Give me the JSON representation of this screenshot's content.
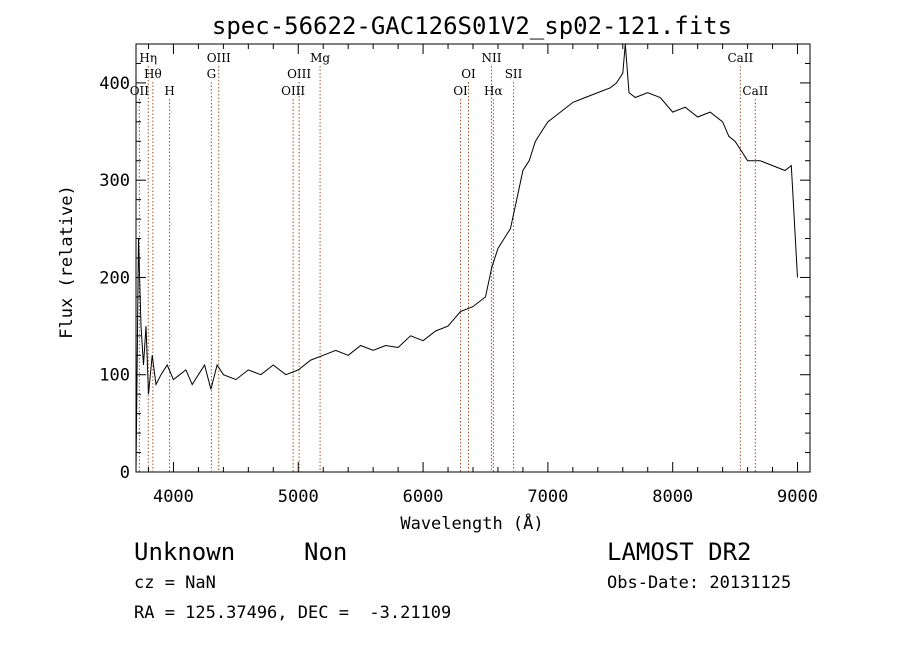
{
  "chart_data": {
    "type": "line",
    "title": "spec-56622-GAC126S01V2_sp02-121.fits",
    "xlabel": "Wavelength (Å)",
    "ylabel": "Flux (relative)",
    "xlim": [
      3700,
      9100
    ],
    "ylim": [
      0,
      440
    ],
    "xticks": [
      4000,
      5000,
      6000,
      7000,
      8000,
      9000
    ],
    "yticks": [
      0,
      100,
      200,
      300,
      400
    ],
    "grid": false,
    "line_color": "#000000",
    "marker_color": "#a0522d",
    "series": [
      {
        "x": [
          3700,
          3720,
          3740,
          3760,
          3780,
          3800,
          3830,
          3860,
          3900,
          3950,
          4000,
          4050,
          4100,
          4150,
          4200,
          4250,
          4300,
          4350,
          4400,
          4500,
          4600,
          4700,
          4800,
          4900,
          5000,
          5100,
          5200,
          5300,
          5400,
          5500,
          5600,
          5700,
          5800,
          5900,
          6000,
          6100,
          6200,
          6300,
          6400,
          6500,
          6550,
          6600,
          6650,
          6700,
          6750,
          6800,
          6850,
          6900,
          6950,
          7000,
          7100,
          7200,
          7300,
          7400,
          7500,
          7550,
          7600,
          7620,
          7650,
          7700,
          7800,
          7900,
          8000,
          8100,
          8200,
          8300,
          8400,
          8450,
          8500,
          8550,
          8600,
          8700,
          8800,
          8900,
          8950,
          9000
        ],
        "y": [
          0,
          240,
          150,
          110,
          150,
          80,
          120,
          90,
          100,
          110,
          95,
          100,
          105,
          90,
          100,
          110,
          85,
          110,
          100,
          95,
          105,
          100,
          110,
          100,
          105,
          115,
          120,
          125,
          120,
          130,
          125,
          130,
          128,
          140,
          135,
          145,
          150,
          165,
          170,
          180,
          210,
          230,
          240,
          250,
          280,
          310,
          320,
          340,
          350,
          360,
          370,
          380,
          385,
          390,
          395,
          400,
          410,
          440,
          390,
          385,
          390,
          385,
          370,
          375,
          365,
          370,
          360,
          345,
          340,
          330,
          320,
          320,
          315,
          310,
          315,
          200
        ]
      }
    ],
    "lines": [
      {
        "x": 3727,
        "label": "OII",
        "row": 3
      },
      {
        "x": 3798,
        "label": "Hη",
        "row": 1
      },
      {
        "x": 3835,
        "label": "Hθ",
        "row": 2
      },
      {
        "x": 3969,
        "label": "H",
        "row": 3
      },
      {
        "x": 4304,
        "label": "G",
        "row": 2
      },
      {
        "x": 4363,
        "label": "OIII",
        "row": 1
      },
      {
        "x": 4959,
        "label": "OIII",
        "row": 3
      },
      {
        "x": 5007,
        "label": "OIII",
        "row": 2
      },
      {
        "x": 5175,
        "label": "Mg",
        "row": 1
      },
      {
        "x": 6300,
        "label": "OI",
        "row": 3
      },
      {
        "x": 6364,
        "label": "OI",
        "row": 2
      },
      {
        "x": 6548,
        "label": "NII",
        "row": 1
      },
      {
        "x": 6563,
        "label": "Hα",
        "row": 3
      },
      {
        "x": 6725,
        "label": "SII",
        "row": 2
      },
      {
        "x": 8542,
        "label": "CaII",
        "row": 1
      },
      {
        "x": 8662,
        "label": "CaII",
        "row": 3
      }
    ]
  },
  "info": {
    "class": "Unknown",
    "subclass": "Non",
    "survey": "LAMOST DR2",
    "cz": "cz = NaN",
    "obs_date": "Obs-Date: 20131125",
    "radec": "RA = 125.37496, DEC =  -3.21109"
  }
}
